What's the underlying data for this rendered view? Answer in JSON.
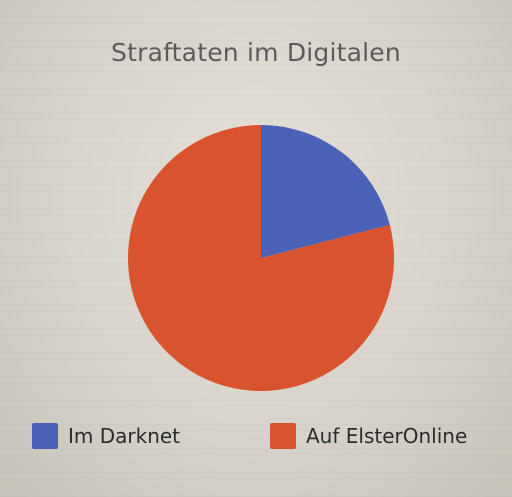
{
  "chart_data": {
    "type": "pie",
    "title": "Straftaten im Digitalen",
    "categories": [
      "Im Darknet",
      "Auf ElsterOnline"
    ],
    "values": [
      21,
      79
    ],
    "colors": [
      "#4a62b8",
      "#d9532f"
    ],
    "legend_position": "bottom"
  }
}
